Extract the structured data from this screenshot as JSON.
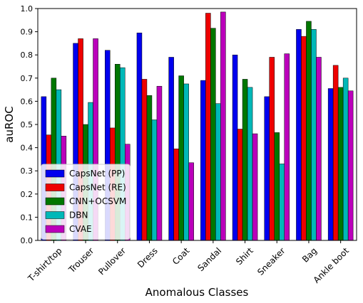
{
  "chart_data": {
    "type": "bar",
    "xlabel": "Anomalous Classes",
    "ylabel": "auROC",
    "ylim": [
      0,
      1.0
    ],
    "yticks": [
      "0.0",
      "0.1",
      "0.2",
      "0.3",
      "0.4",
      "0.5",
      "0.6",
      "0.7",
      "0.8",
      "0.9",
      "1.0"
    ],
    "grid": false,
    "legend_position": "lower-left",
    "categories": [
      "T-shirt/top",
      "Trouser",
      "Pullover",
      "Dress",
      "Coat",
      "Sandal",
      "Shirt",
      "Sneaker",
      "Bag",
      "Ankle boot"
    ],
    "series": [
      {
        "name": "CapsNet (PP)",
        "color": "#0000ee",
        "values": [
          0.62,
          0.85,
          0.82,
          0.895,
          0.79,
          0.69,
          0.8,
          0.62,
          0.91,
          0.655
        ]
      },
      {
        "name": "CapsNet (RE)",
        "color": "#ee0000",
        "values": [
          0.455,
          0.87,
          0.485,
          0.695,
          0.395,
          0.98,
          0.48,
          0.79,
          0.88,
          0.755
        ]
      },
      {
        "name": "CNN+OCSVM",
        "color": "#007700",
        "values": [
          0.7,
          0.5,
          0.76,
          0.625,
          0.71,
          0.915,
          0.695,
          0.465,
          0.945,
          0.66
        ]
      },
      {
        "name": "DBN",
        "color": "#00b8b8",
        "values": [
          0.65,
          0.595,
          0.745,
          0.52,
          0.675,
          0.59,
          0.66,
          0.33,
          0.91,
          0.7
        ]
      },
      {
        "name": "CVAE",
        "color": "#bb00bb",
        "values": [
          0.45,
          0.87,
          0.415,
          0.665,
          0.335,
          0.985,
          0.46,
          0.805,
          0.79,
          0.645
        ]
      }
    ]
  }
}
